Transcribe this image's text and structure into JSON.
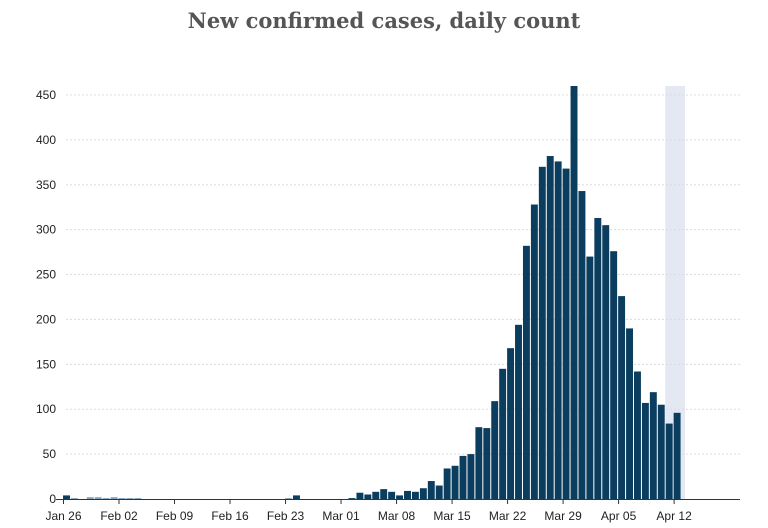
{
  "chart_data": {
    "type": "bar",
    "title": "New confirmed cases, daily count",
    "xlabel": "",
    "ylabel": "",
    "ylim": [
      0,
      460
    ],
    "y_ticks": [
      0,
      50,
      100,
      150,
      200,
      250,
      300,
      350,
      400,
      450
    ],
    "x_ticks": [
      "Jan 26",
      "Feb 02",
      "Feb 09",
      "Feb 16",
      "Feb 23",
      "Mar 01",
      "Mar 08",
      "Mar 15",
      "Mar 22",
      "Mar 29",
      "Apr 05",
      "Apr 12"
    ],
    "grid": "horizontal",
    "start_date": "Jan 26",
    "values": [
      4,
      1,
      0,
      2,
      2,
      1,
      2,
      1,
      1,
      1,
      0,
      0,
      0,
      0,
      0,
      0,
      0,
      0,
      0,
      0,
      0,
      0,
      0,
      0,
      0,
      0,
      0,
      0,
      1,
      4,
      0,
      0,
      0,
      0,
      0,
      0,
      1,
      7,
      5,
      8,
      11,
      8,
      4,
      9,
      8,
      12,
      20,
      15,
      34,
      37,
      48,
      50,
      80,
      79,
      109,
      145,
      168,
      194,
      282,
      328,
      370,
      382,
      376,
      368,
      460,
      343,
      270,
      313,
      305,
      276,
      226,
      190,
      142,
      107,
      119,
      105,
      84,
      96
    ],
    "bar_color": "#0b3d5e",
    "faint_bar_color": "#7fa3c0",
    "highlight_band": {
      "from_day": 76,
      "to_day": 78,
      "color": "#e3e8f3"
    }
  }
}
